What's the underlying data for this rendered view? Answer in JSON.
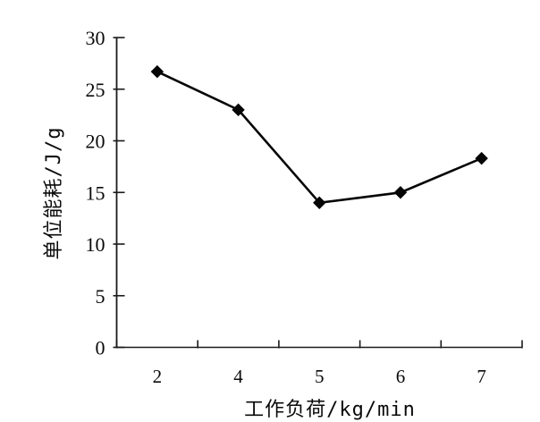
{
  "figure": {
    "background_color": "#ffffff",
    "axis_color": "#1a1a1a",
    "line_color": "#050505",
    "marker_color": "#050505",
    "text_color": "#0a0a0a"
  },
  "chart_data": {
    "type": "line",
    "categories": [
      "2",
      "4",
      "5",
      "6",
      "7"
    ],
    "values": [
      26.7,
      23.0,
      14.0,
      15.0,
      18.3
    ],
    "title": "",
    "xlabel": "工作负荷/kg/min",
    "ylabel": "单位能耗/J/g",
    "ylim": [
      0,
      30
    ],
    "y_ticks": [
      0,
      5,
      10,
      15,
      20,
      25,
      30
    ],
    "x_axis_type": "category",
    "x_tick_style": "boundary",
    "marker": "diamond",
    "grid": false,
    "legend_position": "none"
  }
}
